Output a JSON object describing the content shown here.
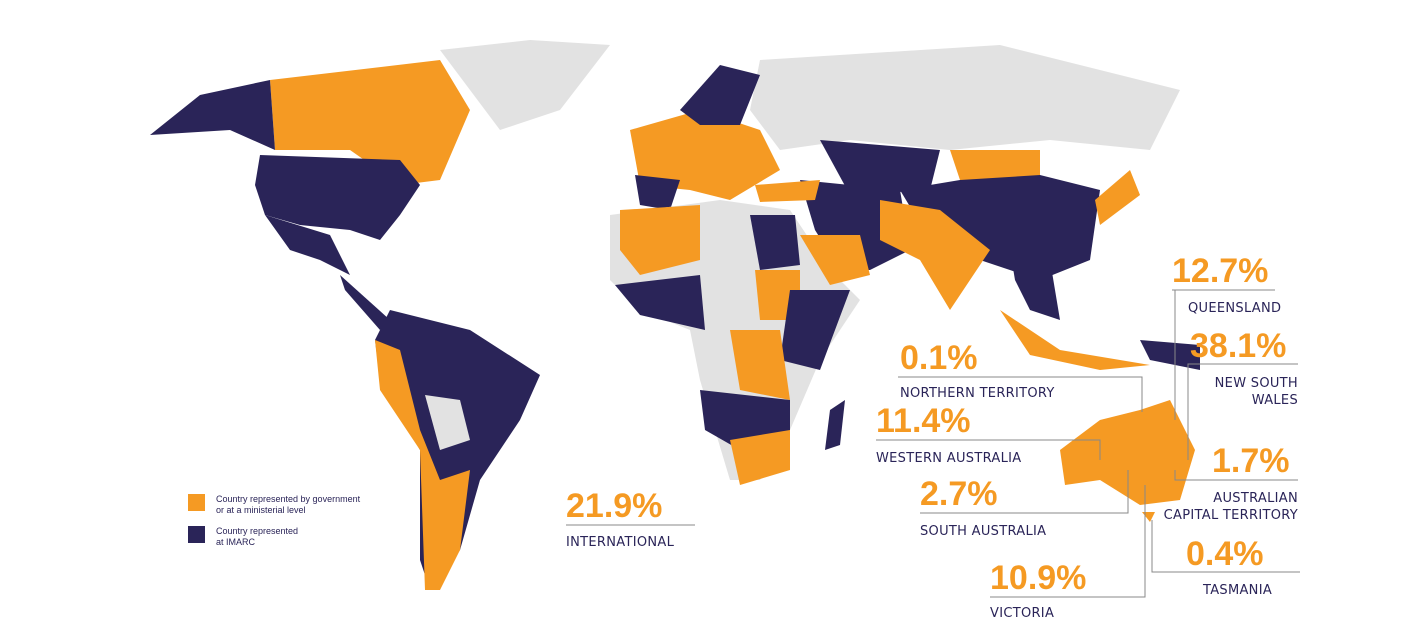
{
  "legend": [
    {
      "label_lines": [
        "Country represented by government",
        "or at a ministerial level"
      ]
    },
    {
      "label_lines": [
        "Country represented",
        "at IMARC"
      ]
    }
  ],
  "stats": [
    {
      "value": "12.7%",
      "label_lines": [
        "QUEENSLAND"
      ]
    },
    {
      "value": "0.1%",
      "label_lines": [
        "NORTHERN TERRITORY"
      ]
    },
    {
      "value": "38.1%",
      "label_lines": [
        "NEW SOUTH",
        "WALES"
      ]
    },
    {
      "value": "11.4%",
      "label_lines": [
        "WESTERN AUSTRALIA"
      ]
    },
    {
      "value": "1.7%",
      "label_lines": [
        "AUSTRALIAN",
        "CAPITAL TERRITORY"
      ]
    },
    {
      "value": "2.7%",
      "label_lines": [
        "SOUTH AUSTRALIA"
      ]
    },
    {
      "value": "0.4%",
      "label_lines": [
        "TASMANIA"
      ]
    },
    {
      "value": "10.9%",
      "label_lines": [
        "VICTORIA"
      ]
    },
    {
      "value": "21.9%",
      "label_lines": [
        "INTERNATIONAL"
      ]
    }
  ]
}
